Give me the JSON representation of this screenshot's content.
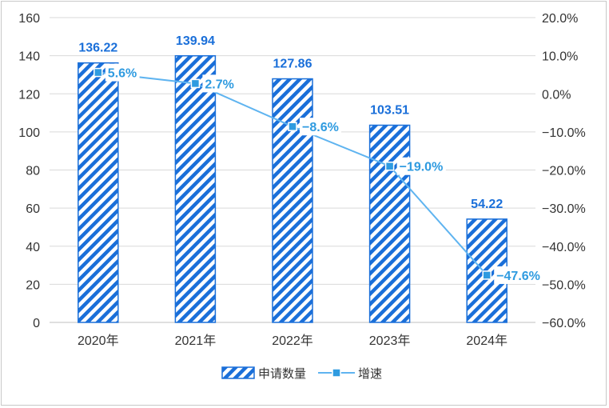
{
  "chart_data": {
    "type": "bar",
    "categories": [
      "2020年",
      "2021年",
      "2022年",
      "2023年",
      "2024年"
    ],
    "series": [
      {
        "name": "申请数量",
        "type": "bar",
        "axis": "left",
        "values": [
          136.22,
          139.94,
          127.86,
          103.51,
          54.22
        ],
        "labels": [
          "136.22",
          "139.94",
          "127.86",
          "103.51",
          "54.22"
        ]
      },
      {
        "name": "增速",
        "type": "line",
        "axis": "right",
        "values": [
          5.6,
          2.7,
          -8.6,
          -19.0,
          -47.6
        ],
        "labels": [
          "5.6%",
          "2.7%",
          "-8.6%",
          "-19.0%",
          "-47.6%"
        ]
      }
    ],
    "y_left": {
      "min": 0,
      "max": 160,
      "ticks": [
        "0",
        "20",
        "40",
        "60",
        "80",
        "100",
        "120",
        "140",
        "160"
      ]
    },
    "y_right": {
      "min": -60,
      "max": 20,
      "ticks": [
        "-60.0%",
        "-50.0%",
        "-40.0%",
        "-30.0%",
        "-20.0%",
        "-10.0%",
        "0.0%",
        "10.0%",
        "20.0%"
      ]
    },
    "grid": true,
    "legend_position": "bottom",
    "colors": {
      "bar": "#1a6fd9",
      "line": "#5fb4f0",
      "marker": "#2f9be0",
      "grid": "#d9d9d9"
    }
  }
}
